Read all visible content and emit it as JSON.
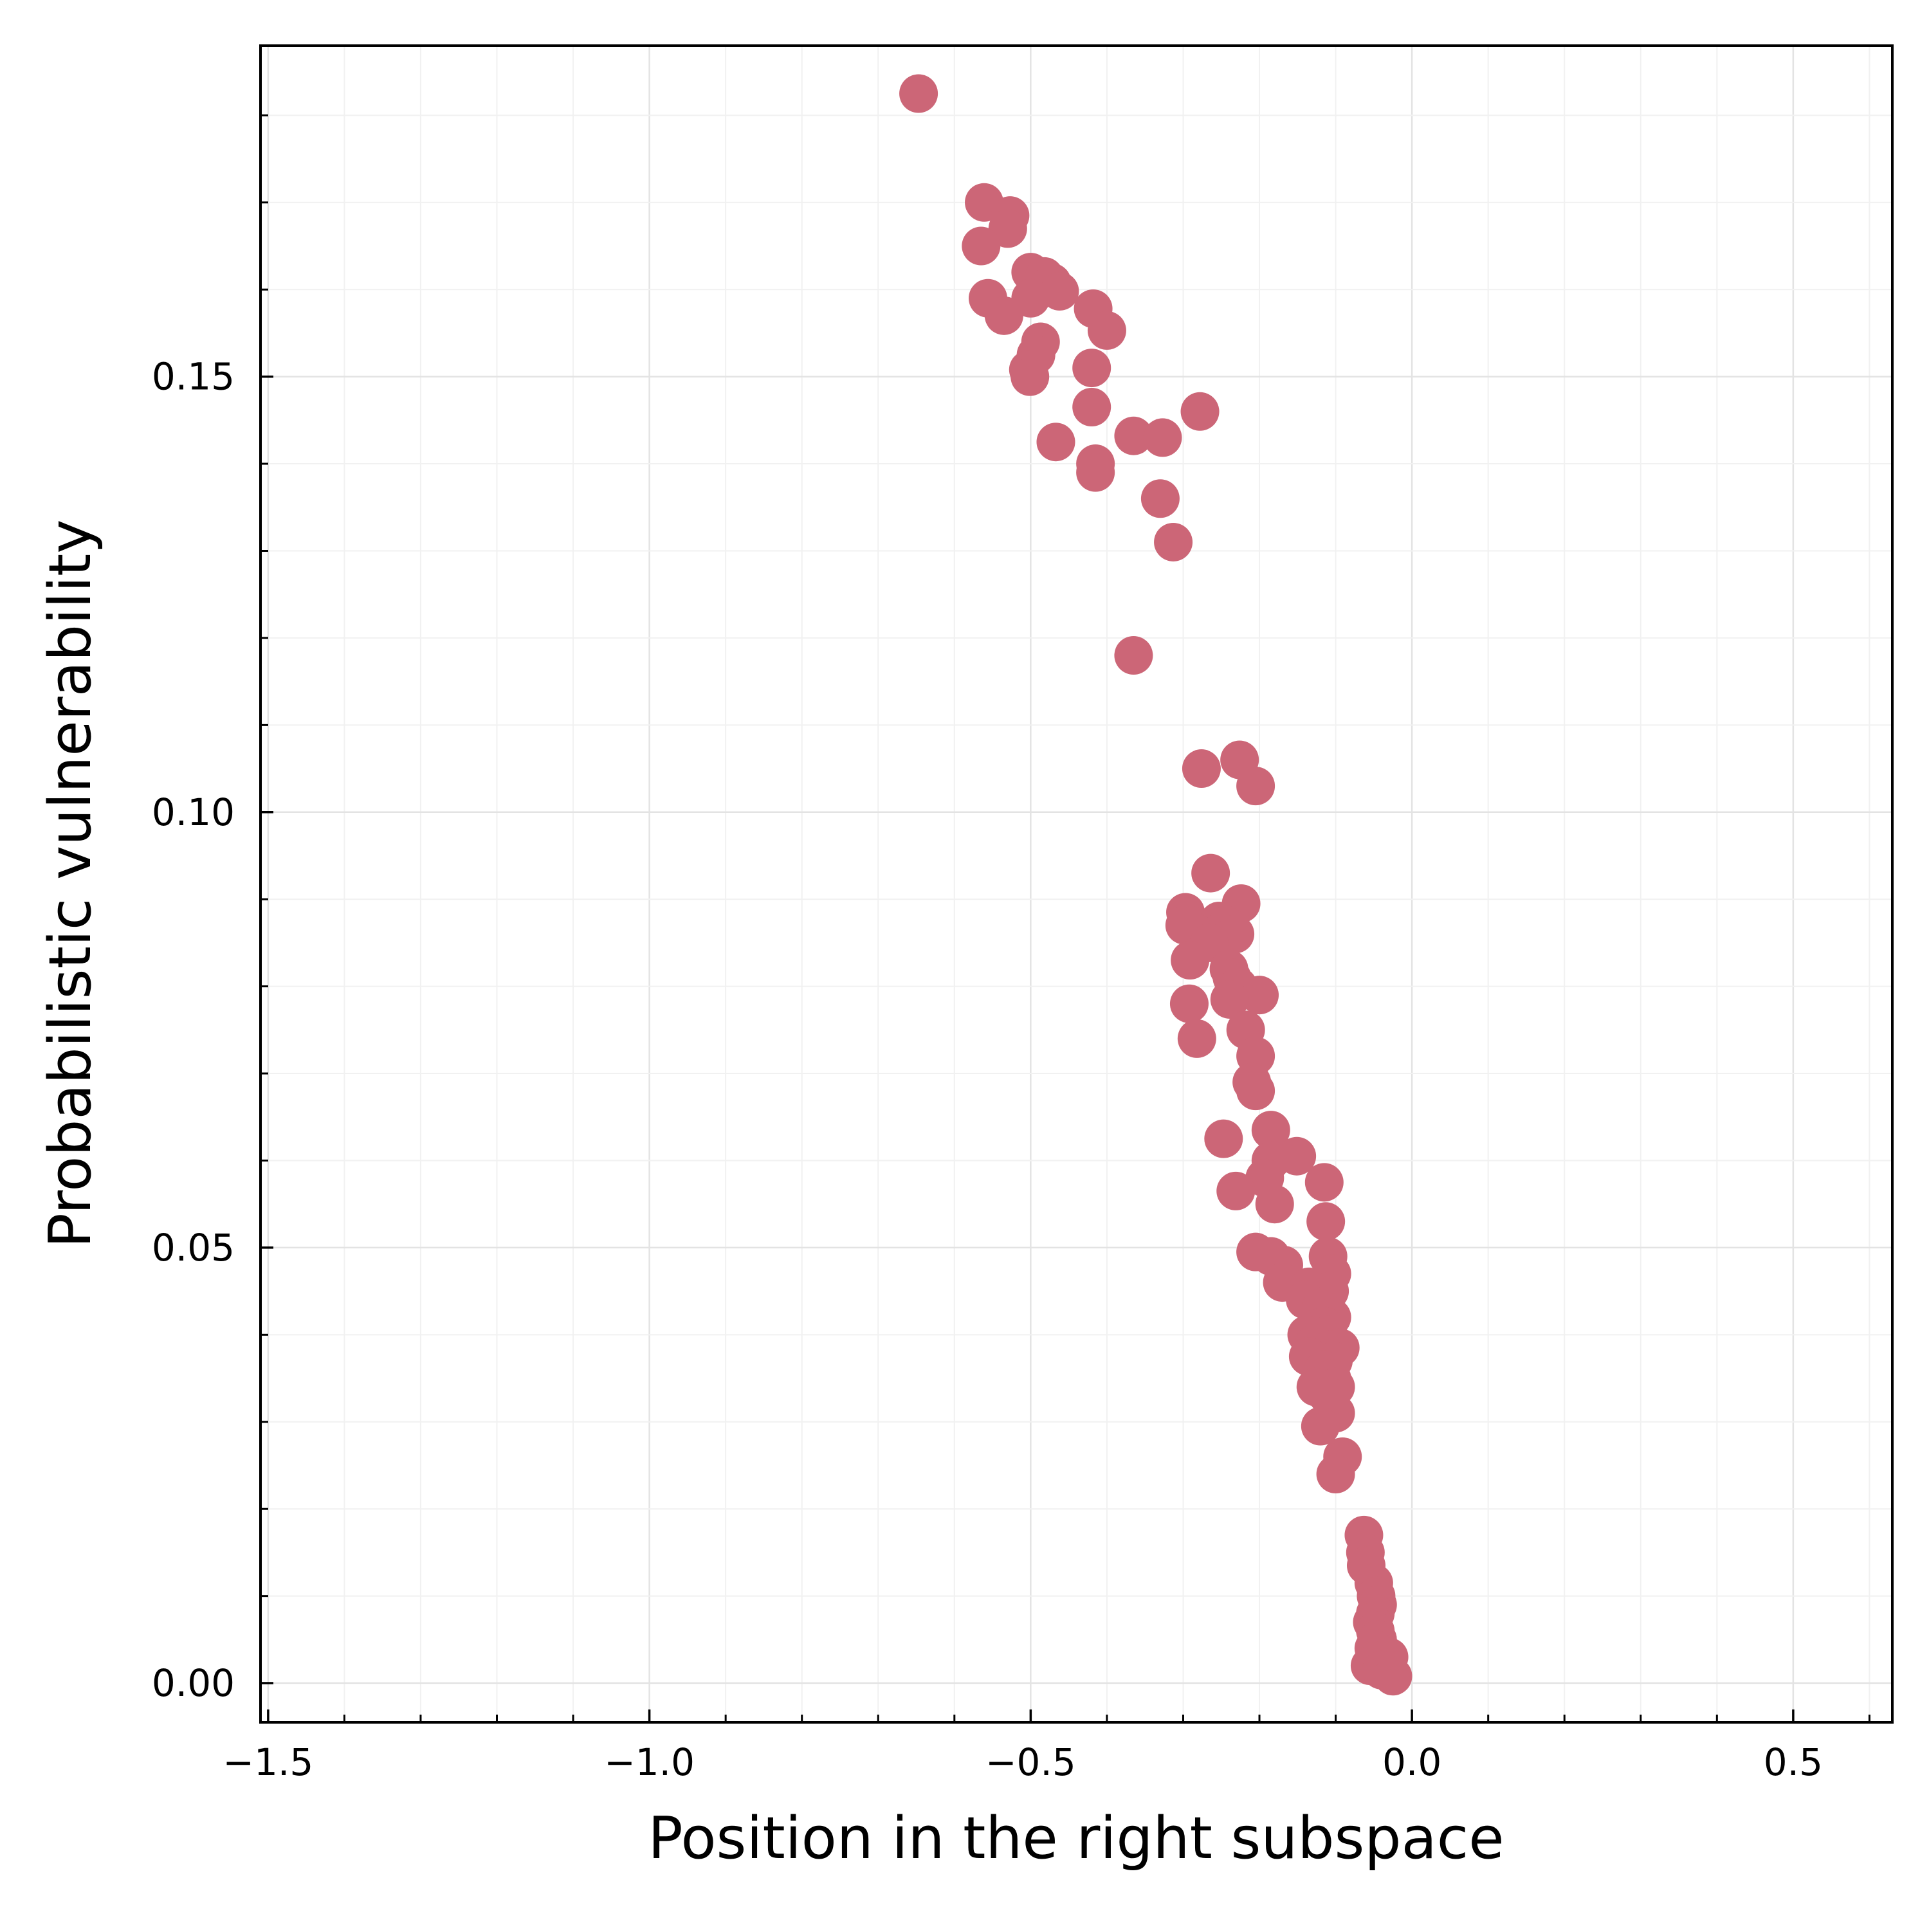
{
  "chart_data": {
    "type": "scatter",
    "title": "",
    "xlabel": "Position in the right subspace",
    "ylabel": "Probabilistic vulnerability",
    "xlim": [
      -1.51,
      0.63
    ],
    "ylim": [
      -0.0045,
      0.188
    ],
    "x_ticks": [
      -1.5,
      -1.0,
      -0.5,
      0.0,
      0.5
    ],
    "x_tick_labels": [
      "−1.5",
      "−1.0",
      "−0.5",
      "0.0",
      "0.5"
    ],
    "y_ticks": [
      0.0,
      0.05,
      0.1,
      0.15
    ],
    "y_tick_labels": [
      "0.00",
      "0.05",
      "0.10",
      "0.15"
    ],
    "grid": true,
    "minor_grid": true,
    "legend": "none",
    "marker_color": "#cc6677",
    "series": [
      {
        "points": [
          [
            -0.647,
            0.1825
          ],
          [
            -0.561,
            0.17
          ],
          [
            -0.527,
            0.1685
          ],
          [
            -0.53,
            0.167
          ],
          [
            -0.565,
            0.165
          ],
          [
            -0.5,
            0.162
          ],
          [
            -0.482,
            0.1615
          ],
          [
            -0.472,
            0.1608
          ],
          [
            -0.462,
            0.1598
          ],
          [
            -0.5,
            0.159
          ],
          [
            -0.556,
            0.159
          ],
          [
            -0.535,
            0.157
          ],
          [
            -0.418,
            0.1578
          ],
          [
            -0.4,
            0.1553
          ],
          [
            -0.487,
            0.154
          ],
          [
            -0.493,
            0.1525
          ],
          [
            -0.503,
            0.1508
          ],
          [
            -0.501,
            0.15
          ],
          [
            -0.42,
            0.151
          ],
          [
            -0.42,
            0.1465
          ],
          [
            -0.278,
            0.146
          ],
          [
            -0.467,
            0.1425
          ],
          [
            -0.365,
            0.1432
          ],
          [
            -0.327,
            0.143
          ],
          [
            -0.415,
            0.14
          ],
          [
            -0.415,
            0.139
          ],
          [
            -0.33,
            0.136
          ],
          [
            -0.313,
            0.131
          ],
          [
            -0.365,
            0.118
          ],
          [
            -0.226,
            0.106
          ],
          [
            -0.276,
            0.105
          ],
          [
            -0.205,
            0.103
          ],
          [
            -0.264,
            0.093
          ],
          [
            -0.224,
            0.0895
          ],
          [
            -0.297,
            0.0885
          ],
          [
            -0.29,
            0.087
          ],
          [
            -0.253,
            0.0875
          ],
          [
            -0.243,
            0.087
          ],
          [
            -0.232,
            0.086
          ],
          [
            -0.281,
            0.086
          ],
          [
            -0.298,
            0.087
          ],
          [
            -0.266,
            0.085
          ],
          [
            -0.291,
            0.083
          ],
          [
            -0.24,
            0.082
          ],
          [
            -0.236,
            0.081
          ],
          [
            -0.228,
            0.08
          ],
          [
            -0.2,
            0.079
          ],
          [
            -0.239,
            0.0785
          ],
          [
            -0.292,
            0.078
          ],
          [
            -0.218,
            0.075
          ],
          [
            -0.282,
            0.074
          ],
          [
            -0.205,
            0.072
          ],
          [
            -0.21,
            0.069
          ],
          [
            -0.205,
            0.068
          ],
          [
            -0.185,
            0.0635
          ],
          [
            -0.247,
            0.0625
          ],
          [
            -0.151,
            0.0605
          ],
          [
            -0.185,
            0.06
          ],
          [
            -0.193,
            0.058
          ],
          [
            -0.115,
            0.0575
          ],
          [
            -0.231,
            0.0565
          ],
          [
            -0.18,
            0.055
          ],
          [
            -0.113,
            0.053
          ],
          [
            -0.205,
            0.0495
          ],
          [
            -0.185,
            0.049
          ],
          [
            -0.168,
            0.048
          ],
          [
            -0.11,
            0.049
          ],
          [
            -0.105,
            0.047
          ],
          [
            -0.11,
            0.046
          ],
          [
            -0.17,
            0.046
          ],
          [
            -0.135,
            0.0455
          ],
          [
            -0.108,
            0.045
          ],
          [
            -0.14,
            0.044
          ],
          [
            -0.12,
            0.043
          ],
          [
            -0.105,
            0.042
          ],
          [
            -0.115,
            0.041
          ],
          [
            -0.138,
            0.04
          ],
          [
            -0.11,
            0.04
          ],
          [
            -0.128,
            0.039
          ],
          [
            -0.094,
            0.0385
          ],
          [
            -0.136,
            0.0375
          ],
          [
            -0.103,
            0.037
          ],
          [
            -0.116,
            0.036
          ],
          [
            -0.105,
            0.035
          ],
          [
            -0.126,
            0.034
          ],
          [
            -0.1,
            0.034
          ],
          [
            -0.11,
            0.033
          ],
          [
            -0.1,
            0.031
          ],
          [
            -0.12,
            0.0295
          ],
          [
            -0.091,
            0.026
          ],
          [
            -0.1,
            0.024
          ],
          [
            -0.063,
            0.017
          ],
          [
            -0.061,
            0.015
          ],
          [
            -0.06,
            0.0135
          ],
          [
            -0.05,
            0.0115
          ],
          [
            -0.047,
            0.01
          ],
          [
            -0.045,
            0.009
          ],
          [
            -0.048,
            0.008
          ],
          [
            -0.052,
            0.007
          ],
          [
            -0.048,
            0.006
          ],
          [
            -0.045,
            0.005
          ],
          [
            -0.05,
            0.004
          ],
          [
            -0.03,
            0.003
          ],
          [
            -0.055,
            0.002
          ],
          [
            -0.04,
            0.0015
          ],
          [
            -0.025,
            0.0008
          ]
        ]
      }
    ]
  }
}
